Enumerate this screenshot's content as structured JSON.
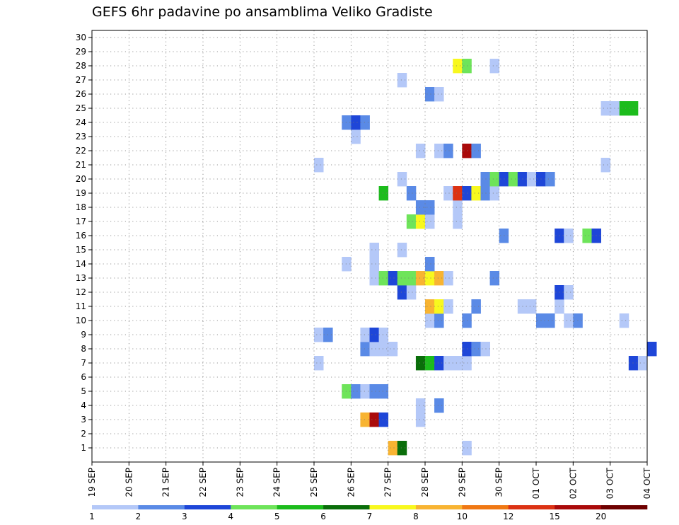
{
  "title": "GEFS 6hr padavine po ansamblima Veliko Gradiste",
  "chart_data": {
    "type": "heatmap",
    "title": "GEFS 6hr padavine po ansamblima Veliko Gradiste",
    "x_tick_labels": [
      "19 SEP",
      "20 SEP",
      "21 SEP",
      "22 SEP",
      "23 SEP",
      "24 SEP",
      "25 SEP",
      "26 SEP",
      "27 SEP",
      "28 SEP",
      "29 SEP",
      "30 SEP",
      "01 OCT",
      "02 OCT",
      "03 OCT",
      "04 OCT"
    ],
    "y_tick_labels": [
      "1",
      "2",
      "3",
      "4",
      "5",
      "6",
      "7",
      "8",
      "9",
      "10",
      "11",
      "12",
      "13",
      "14",
      "15",
      "16",
      "17",
      "18",
      "19",
      "20",
      "21",
      "22",
      "23",
      "24",
      "25",
      "26",
      "27",
      "28",
      "29",
      "30"
    ],
    "steps_per_day": 4,
    "grid": true,
    "legend": {
      "labels": [
        "1",
        "2",
        "3",
        "4",
        "5",
        "6",
        "7",
        "8",
        "10",
        "12",
        "15",
        "20"
      ],
      "colors": [
        "#b4c8f8",
        "#5a8ae6",
        "#1e46d8",
        "#6ee45a",
        "#1cbc1c",
        "#0a6e0a",
        "#f8f81e",
        "#f8b432",
        "#f07814",
        "#dc3214",
        "#aa0a0a",
        "#6e0000"
      ]
    },
    "cells": [
      {
        "member": 1,
        "step": 32,
        "cat": 8
      },
      {
        "member": 1,
        "step": 33,
        "cat": 6
      },
      {
        "member": 1,
        "step": 40,
        "cat": 1
      },
      {
        "member": 3,
        "step": 29,
        "cat": 8
      },
      {
        "member": 3,
        "step": 30,
        "cat": 11
      },
      {
        "member": 3,
        "step": 31,
        "cat": 3
      },
      {
        "member": 3,
        "step": 35,
        "cat": 1
      },
      {
        "member": 4,
        "step": 35,
        "cat": 1
      },
      {
        "member": 4,
        "step": 37,
        "cat": 2
      },
      {
        "member": 5,
        "step": 27,
        "cat": 4
      },
      {
        "member": 5,
        "step": 28,
        "cat": 2
      },
      {
        "member": 5,
        "step": 29,
        "cat": 1
      },
      {
        "member": 5,
        "step": 30,
        "cat": 2
      },
      {
        "member": 5,
        "step": 31,
        "cat": 2
      },
      {
        "member": 7,
        "step": 24,
        "cat": 1
      },
      {
        "member": 7,
        "step": 35,
        "cat": 6
      },
      {
        "member": 7,
        "step": 36,
        "cat": 5
      },
      {
        "member": 7,
        "step": 37,
        "cat": 3
      },
      {
        "member": 7,
        "step": 38,
        "cat": 1
      },
      {
        "member": 7,
        "step": 39,
        "cat": 1
      },
      {
        "member": 7,
        "step": 40,
        "cat": 1
      },
      {
        "member": 7,
        "step": 58,
        "cat": 3
      },
      {
        "member": 7,
        "step": 59,
        "cat": 1
      },
      {
        "member": 8,
        "step": 29,
        "cat": 2
      },
      {
        "member": 8,
        "step": 30,
        "cat": 1
      },
      {
        "member": 8,
        "step": 31,
        "cat": 1
      },
      {
        "member": 8,
        "step": 32,
        "cat": 1
      },
      {
        "member": 8,
        "step": 40,
        "cat": 3
      },
      {
        "member": 8,
        "step": 41,
        "cat": 2
      },
      {
        "member": 8,
        "step": 42,
        "cat": 1
      },
      {
        "member": 8,
        "step": 60,
        "cat": 3
      },
      {
        "member": 9,
        "step": 24,
        "cat": 1
      },
      {
        "member": 9,
        "step": 25,
        "cat": 2
      },
      {
        "member": 9,
        "step": 29,
        "cat": 1
      },
      {
        "member": 9,
        "step": 30,
        "cat": 3
      },
      {
        "member": 9,
        "step": 31,
        "cat": 1
      },
      {
        "member": 10,
        "step": 36,
        "cat": 1
      },
      {
        "member": 10,
        "step": 37,
        "cat": 2
      },
      {
        "member": 10,
        "step": 40,
        "cat": 2
      },
      {
        "member": 10,
        "step": 48,
        "cat": 2
      },
      {
        "member": 10,
        "step": 49,
        "cat": 2
      },
      {
        "member": 10,
        "step": 51,
        "cat": 1
      },
      {
        "member": 10,
        "step": 52,
        "cat": 2
      },
      {
        "member": 10,
        "step": 57,
        "cat": 1
      },
      {
        "member": 11,
        "step": 36,
        "cat": 8
      },
      {
        "member": 11,
        "step": 37,
        "cat": 7
      },
      {
        "member": 11,
        "step": 38,
        "cat": 1
      },
      {
        "member": 11,
        "step": 41,
        "cat": 2
      },
      {
        "member": 11,
        "step": 46,
        "cat": 1
      },
      {
        "member": 11,
        "step": 47,
        "cat": 1
      },
      {
        "member": 11,
        "step": 50,
        "cat": 1
      },
      {
        "member": 12,
        "step": 33,
        "cat": 3
      },
      {
        "member": 12,
        "step": 34,
        "cat": 1
      },
      {
        "member": 12,
        "step": 50,
        "cat": 3
      },
      {
        "member": 12,
        "step": 51,
        "cat": 1
      },
      {
        "member": 13,
        "step": 30,
        "cat": 1
      },
      {
        "member": 13,
        "step": 31,
        "cat": 4
      },
      {
        "member": 13,
        "step": 32,
        "cat": 3
      },
      {
        "member": 13,
        "step": 33,
        "cat": 4
      },
      {
        "member": 13,
        "step": 34,
        "cat": 4
      },
      {
        "member": 13,
        "step": 35,
        "cat": 8
      },
      {
        "member": 13,
        "step": 36,
        "cat": 7
      },
      {
        "member": 13,
        "step": 37,
        "cat": 8
      },
      {
        "member": 13,
        "step": 38,
        "cat": 1
      },
      {
        "member": 13,
        "step": 43,
        "cat": 2
      },
      {
        "member": 14,
        "step": 27,
        "cat": 1
      },
      {
        "member": 14,
        "step": 30,
        "cat": 1
      },
      {
        "member": 14,
        "step": 36,
        "cat": 2
      },
      {
        "member": 15,
        "step": 30,
        "cat": 1
      },
      {
        "member": 15,
        "step": 33,
        "cat": 1
      },
      {
        "member": 16,
        "step": 44,
        "cat": 2
      },
      {
        "member": 16,
        "step": 50,
        "cat": 3
      },
      {
        "member": 16,
        "step": 51,
        "cat": 1
      },
      {
        "member": 16,
        "step": 53,
        "cat": 4
      },
      {
        "member": 16,
        "step": 54,
        "cat": 3
      },
      {
        "member": 17,
        "step": 34,
        "cat": 4
      },
      {
        "member": 17,
        "step": 35,
        "cat": 7
      },
      {
        "member": 17,
        "step": 36,
        "cat": 1
      },
      {
        "member": 17,
        "step": 39,
        "cat": 1
      },
      {
        "member": 18,
        "step": 35,
        "cat": 2
      },
      {
        "member": 18,
        "step": 36,
        "cat": 2
      },
      {
        "member": 18,
        "step": 39,
        "cat": 1
      },
      {
        "member": 19,
        "step": 31,
        "cat": 5
      },
      {
        "member": 19,
        "step": 34,
        "cat": 2
      },
      {
        "member": 19,
        "step": 38,
        "cat": 1
      },
      {
        "member": 19,
        "step": 39,
        "cat": 10
      },
      {
        "member": 19,
        "step": 40,
        "cat": 3
      },
      {
        "member": 19,
        "step": 41,
        "cat": 7
      },
      {
        "member": 19,
        "step": 42,
        "cat": 2
      },
      {
        "member": 19,
        "step": 43,
        "cat": 1
      },
      {
        "member": 20,
        "step": 33,
        "cat": 1
      },
      {
        "member": 20,
        "step": 42,
        "cat": 2
      },
      {
        "member": 20,
        "step": 43,
        "cat": 4
      },
      {
        "member": 20,
        "step": 44,
        "cat": 3
      },
      {
        "member": 20,
        "step": 45,
        "cat": 4
      },
      {
        "member": 20,
        "step": 46,
        "cat": 3
      },
      {
        "member": 20,
        "step": 47,
        "cat": 1
      },
      {
        "member": 20,
        "step": 48,
        "cat": 3
      },
      {
        "member": 20,
        "step": 49,
        "cat": 2
      },
      {
        "member": 21,
        "step": 24,
        "cat": 1
      },
      {
        "member": 21,
        "step": 55,
        "cat": 1
      },
      {
        "member": 22,
        "step": 35,
        "cat": 1
      },
      {
        "member": 22,
        "step": 37,
        "cat": 1
      },
      {
        "member": 22,
        "step": 38,
        "cat": 2
      },
      {
        "member": 22,
        "step": 40,
        "cat": 11
      },
      {
        "member": 22,
        "step": 41,
        "cat": 2
      },
      {
        "member": 23,
        "step": 28,
        "cat": 1
      },
      {
        "member": 24,
        "step": 27,
        "cat": 2
      },
      {
        "member": 24,
        "step": 28,
        "cat": 3
      },
      {
        "member": 24,
        "step": 29,
        "cat": 2
      },
      {
        "member": 25,
        "step": 55,
        "cat": 1
      },
      {
        "member": 25,
        "step": 56,
        "cat": 1
      },
      {
        "member": 25,
        "step": 57,
        "cat": 5
      },
      {
        "member": 25,
        "step": 58,
        "cat": 5
      },
      {
        "member": 26,
        "step": 36,
        "cat": 2
      },
      {
        "member": 26,
        "step": 37,
        "cat": 1
      },
      {
        "member": 27,
        "step": 33,
        "cat": 1
      },
      {
        "member": 28,
        "step": 39,
        "cat": 7
      },
      {
        "member": 28,
        "step": 40,
        "cat": 4
      },
      {
        "member": 28,
        "step": 43,
        "cat": 1
      }
    ]
  }
}
